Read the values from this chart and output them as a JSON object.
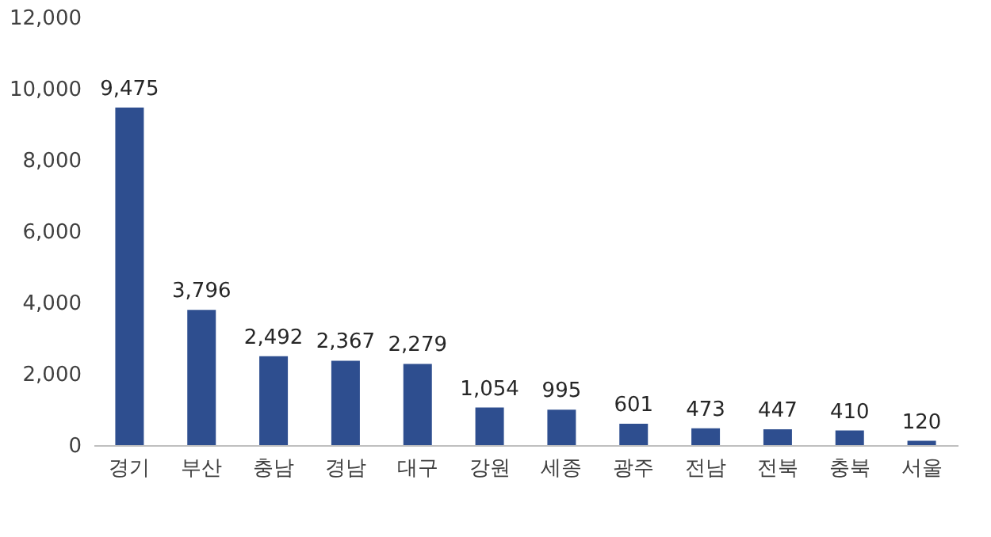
{
  "chart_data": {
    "type": "bar",
    "categories": [
      "경기",
      "부산",
      "충남",
      "경남",
      "대구",
      "강원",
      "세종",
      "광주",
      "전남",
      "전북",
      "충북",
      "서울"
    ],
    "values": [
      9475,
      3796,
      2492,
      2367,
      2279,
      1054,
      995,
      601,
      473,
      447,
      410,
      120
    ],
    "value_labels": [
      "9,475",
      "3,796",
      "2,492",
      "2,367",
      "2,279",
      "1,054",
      "995",
      "601",
      "473",
      "447",
      "410",
      "120"
    ],
    "color": "#2e4e8f",
    "ylim": [
      0,
      12000
    ],
    "yticks": [
      0,
      {
        "value": 2000,
        "label": "2,000"
      },
      {
        "value": 4000,
        "label": "4,000"
      },
      {
        "value": 6000,
        "label": "6,000"
      },
      {
        "value": 8000,
        "label": "8,000"
      },
      {
        "value": 10000,
        "label": "10,000"
      },
      {
        "value": 12000,
        "label": "12,000"
      }
    ],
    "grid": false
  }
}
